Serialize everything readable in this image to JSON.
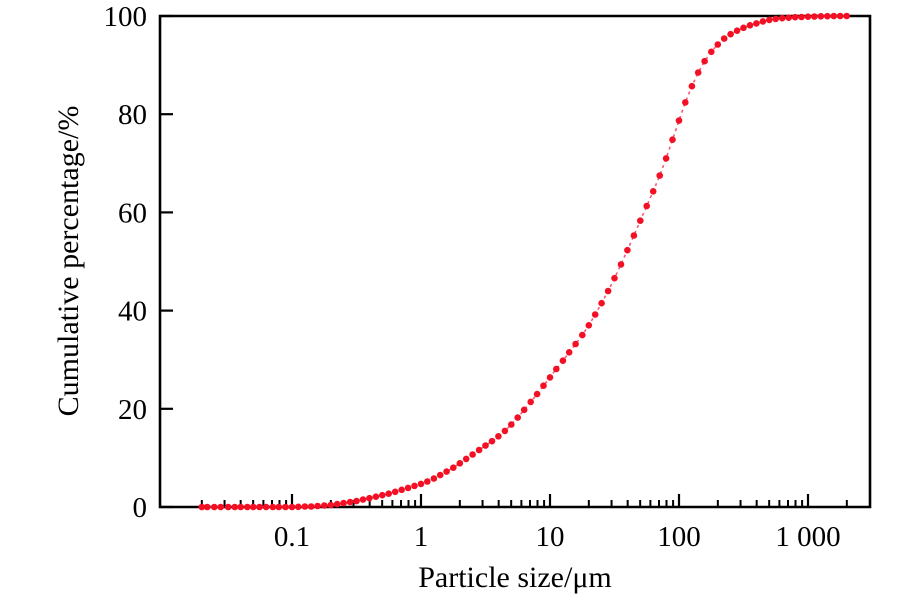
{
  "figure": {
    "background": "#ffffff",
    "axis_color": "#000000"
  },
  "chart_data": {
    "type": "line",
    "title": "",
    "xlabel": "Particle size/μm",
    "ylabel": "Cumulative percentage/%",
    "x_scale": "log",
    "xlim": [
      0.0095,
      3000
    ],
    "ylim": [
      0,
      100
    ],
    "grid": false,
    "legend": "none",
    "x_major_ticks": [
      {
        "value": 0.1,
        "label": "0.1"
      },
      {
        "value": 1,
        "label": "1"
      },
      {
        "value": 10,
        "label": "10"
      },
      {
        "value": 100,
        "label": "100"
      },
      {
        "value": 1000,
        "label": "1 000"
      }
    ],
    "x_minor_ticks": [
      0.02,
      0.03,
      0.04,
      0.05,
      0.06,
      0.07,
      0.08,
      0.09,
      0.2,
      0.3,
      0.4,
      0.5,
      0.6,
      0.7,
      0.8,
      0.9,
      2,
      3,
      4,
      5,
      6,
      7,
      8,
      9,
      20,
      30,
      40,
      50,
      60,
      70,
      80,
      90,
      200,
      300,
      400,
      500,
      600,
      700,
      800,
      900,
      2000
    ],
    "y_ticks": [
      {
        "value": 0,
        "label": "0"
      },
      {
        "value": 20,
        "label": "20"
      },
      {
        "value": 40,
        "label": "40"
      },
      {
        "value": 60,
        "label": "60"
      },
      {
        "value": 80,
        "label": "80"
      },
      {
        "value": 100,
        "label": "100"
      }
    ],
    "series": [
      {
        "name": "Cumulative percentage",
        "marker": "circle",
        "marker_color": "#f41024",
        "line_style": "dashed",
        "line_color": "#f75b75",
        "points": [
          [
            0.02,
            0
          ],
          [
            0.022,
            0
          ],
          [
            0.025,
            0
          ],
          [
            0.028,
            0
          ],
          [
            0.032,
            0
          ],
          [
            0.036,
            0
          ],
          [
            0.04,
            0
          ],
          [
            0.045,
            0
          ],
          [
            0.05,
            0
          ],
          [
            0.056,
            0
          ],
          [
            0.063,
            0
          ],
          [
            0.071,
            0
          ],
          [
            0.079,
            0
          ],
          [
            0.089,
            0
          ],
          [
            0.1,
            0
          ],
          [
            0.112,
            0.05
          ],
          [
            0.126,
            0.1
          ],
          [
            0.141,
            0.1
          ],
          [
            0.158,
            0.2
          ],
          [
            0.178,
            0.3
          ],
          [
            0.2,
            0.4
          ],
          [
            0.224,
            0.6
          ],
          [
            0.251,
            0.8
          ],
          [
            0.282,
            1.0
          ],
          [
            0.316,
            1.2
          ],
          [
            0.355,
            1.5
          ],
          [
            0.398,
            1.8
          ],
          [
            0.447,
            2.1
          ],
          [
            0.501,
            2.4
          ],
          [
            0.562,
            2.7
          ],
          [
            0.631,
            3.1
          ],
          [
            0.708,
            3.5
          ],
          [
            0.794,
            3.9
          ],
          [
            0.891,
            4.3
          ],
          [
            1.0,
            4.7
          ],
          [
            1.12,
            5.2
          ],
          [
            1.26,
            5.8
          ],
          [
            1.41,
            6.5
          ],
          [
            1.58,
            7.2
          ],
          [
            1.78,
            8.0
          ],
          [
            2.0,
            8.9
          ],
          [
            2.24,
            9.8
          ],
          [
            2.51,
            10.7
          ],
          [
            2.82,
            11.6
          ],
          [
            3.16,
            12.5
          ],
          [
            3.55,
            13.4
          ],
          [
            3.98,
            14.4
          ],
          [
            4.47,
            15.5
          ],
          [
            5.01,
            16.8
          ],
          [
            5.62,
            18.2
          ],
          [
            6.31,
            19.8
          ],
          [
            7.08,
            21.4
          ],
          [
            7.94,
            23.0
          ],
          [
            8.91,
            24.7
          ],
          [
            10,
            26.4
          ],
          [
            11.2,
            28.1
          ],
          [
            12.6,
            29.8
          ],
          [
            14.1,
            31.5
          ],
          [
            15.8,
            33.2
          ],
          [
            17.8,
            35.0
          ],
          [
            20,
            37.0
          ],
          [
            22.4,
            39.2
          ],
          [
            25.1,
            41.5
          ],
          [
            28.2,
            44.0
          ],
          [
            31.6,
            46.6
          ],
          [
            35.5,
            49.4
          ],
          [
            39.8,
            52.3
          ],
          [
            44.7,
            55.3
          ],
          [
            50.1,
            58.3
          ],
          [
            56.2,
            61.3
          ],
          [
            63.1,
            64.3
          ],
          [
            70.8,
            67.5
          ],
          [
            79.4,
            71.0
          ],
          [
            89.1,
            74.8
          ],
          [
            100,
            78.7
          ],
          [
            112,
            82.4
          ],
          [
            126,
            85.7
          ],
          [
            141,
            88.5
          ],
          [
            158,
            90.8
          ],
          [
            178,
            92.7
          ],
          [
            200,
            94.2
          ],
          [
            224,
            95.4
          ],
          [
            251,
            96.3
          ],
          [
            282,
            97.0
          ],
          [
            316,
            97.6
          ],
          [
            355,
            98.1
          ],
          [
            398,
            98.5
          ],
          [
            447,
            98.9
          ],
          [
            501,
            99.2
          ],
          [
            562,
            99.4
          ],
          [
            631,
            99.55
          ],
          [
            708,
            99.65
          ],
          [
            794,
            99.75
          ],
          [
            891,
            99.8
          ],
          [
            1000,
            99.85
          ],
          [
            1122,
            99.9
          ],
          [
            1259,
            99.93
          ],
          [
            1413,
            99.95
          ],
          [
            1585,
            99.97
          ],
          [
            1778,
            99.99
          ],
          [
            1995,
            100
          ]
        ]
      }
    ]
  }
}
